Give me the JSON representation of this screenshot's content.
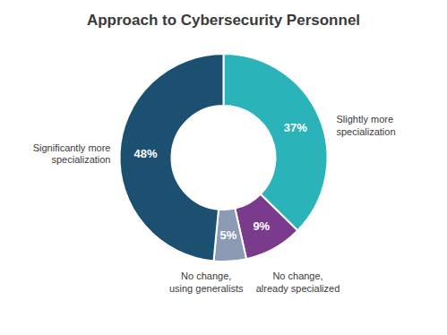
{
  "chart_data": {
    "type": "donut",
    "title": "Approach to Cybersecurity Personnel",
    "categories": [
      "Slightly more\nspecialization",
      "No change,\nalready specialized",
      "No change,\nusing generalists",
      "Significantly more\nspecialization"
    ],
    "values": [
      37,
      9,
      5,
      48
    ],
    "value_labels": [
      "37%",
      "9%",
      "5%",
      "48%"
    ],
    "colors": [
      "#2ab3b8",
      "#7b3b8c",
      "#8c9bb5",
      "#1b5070"
    ],
    "data_labels": true
  }
}
